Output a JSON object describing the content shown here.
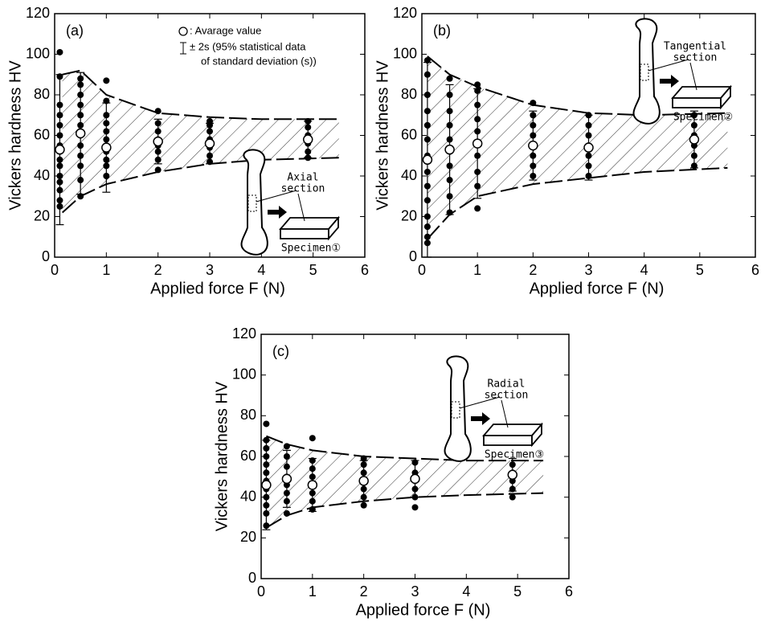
{
  "chart_data": [
    {
      "type": "scatter",
      "panel": "(a)",
      "xlabel": "Applied force  F  (N)",
      "ylabel": "Vickers hardness  HV",
      "xlim": [
        0,
        6
      ],
      "ylim": [
        0,
        120
      ],
      "xticks": [
        0,
        1,
        2,
        3,
        4,
        5,
        6
      ],
      "yticks": [
        0,
        20,
        40,
        60,
        80,
        100,
        120
      ],
      "legend": {
        "average": ": Avarage value",
        "error": [
          "± 2s (95% statistical data",
          "of standard deviation (s))"
        ]
      },
      "inset": {
        "section": [
          "Axial",
          "section"
        ],
        "specimen": "Specimen①"
      },
      "averages": {
        "x": [
          0.1,
          0.5,
          1,
          2,
          3,
          4.9
        ],
        "values": [
          53,
          61,
          54,
          57,
          56,
          58
        ],
        "errors": [
          37,
          30,
          22,
          11,
          10,
          9
        ]
      },
      "points": [
        {
          "x": 0.1,
          "y": [
            25,
            28,
            33,
            37,
            40,
            45,
            48,
            52,
            55,
            60,
            65,
            70,
            75,
            89,
            101
          ]
        },
        {
          "x": 0.5,
          "y": [
            30,
            38,
            45,
            50,
            55,
            60,
            65,
            70,
            75,
            80,
            85,
            88
          ]
        },
        {
          "x": 1,
          "y": [
            40,
            45,
            48,
            52,
            55,
            58,
            62,
            66,
            70,
            77,
            87
          ]
        },
        {
          "x": 2,
          "y": [
            43,
            48,
            52,
            55,
            58,
            62,
            66,
            72
          ]
        },
        {
          "x": 3,
          "y": [
            47,
            50,
            54,
            58,
            62,
            65,
            67
          ]
        },
        {
          "x": 4.9,
          "y": [
            49,
            52,
            56,
            60,
            64,
            67
          ]
        }
      ],
      "band": {
        "x": [
          0.15,
          0.5,
          1,
          2,
          3,
          4,
          5.5
        ],
        "upper": [
          90,
          92,
          80,
          71,
          69,
          68,
          68
        ],
        "lower": [
          22,
          30,
          36,
          42,
          46,
          48,
          49
        ]
      }
    },
    {
      "type": "scatter",
      "panel": "(b)",
      "xlabel": "Applied force  F  (N)",
      "ylabel": "Vickers hardness  HV",
      "xlim": [
        0,
        6
      ],
      "ylim": [
        0,
        120
      ],
      "xticks": [
        0,
        1,
        2,
        3,
        4,
        5,
        6
      ],
      "yticks": [
        0,
        20,
        40,
        60,
        80,
        100,
        120
      ],
      "inset": {
        "section": [
          "Tangential",
          "section"
        ],
        "specimen": "Specimen②"
      },
      "averages": {
        "x": [
          0.1,
          0.5,
          1,
          2,
          3,
          4.9
        ],
        "values": [
          48,
          53,
          56,
          55,
          54,
          58
        ],
        "errors": [
          48,
          32,
          27,
          17,
          16,
          14
        ]
      },
      "points": [
        {
          "x": 0.1,
          "y": [
            7,
            10,
            15,
            20,
            28,
            35,
            42,
            50,
            58,
            65,
            72,
            80,
            90,
            97
          ]
        },
        {
          "x": 0.5,
          "y": [
            22,
            30,
            38,
            45,
            52,
            58,
            65,
            72,
            80,
            88
          ]
        },
        {
          "x": 1,
          "y": [
            24,
            35,
            42,
            50,
            56,
            62,
            68,
            75,
            82,
            85
          ]
        },
        {
          "x": 2,
          "y": [
            40,
            45,
            50,
            55,
            60,
            65,
            70,
            76
          ]
        },
        {
          "x": 3,
          "y": [
            40,
            45,
            50,
            55,
            60,
            65,
            70
          ]
        },
        {
          "x": 4.9,
          "y": [
            45,
            50,
            55,
            60,
            65,
            70
          ]
        }
      ],
      "band": {
        "x": [
          0.1,
          0.5,
          1,
          2,
          3,
          4,
          5.5
        ],
        "upper": [
          99,
          90,
          84,
          75,
          71,
          70,
          71
        ],
        "lower": [
          9,
          21,
          30,
          36,
          39,
          42,
          44
        ]
      }
    },
    {
      "type": "scatter",
      "panel": "(c)",
      "xlabel": "Applied force  F  (N)",
      "ylabel": "Vickers hardness  HV",
      "xlim": [
        0,
        6
      ],
      "ylim": [
        0,
        120
      ],
      "xticks": [
        0,
        1,
        2,
        3,
        4,
        5,
        6
      ],
      "yticks": [
        0,
        20,
        40,
        60,
        80,
        100,
        120
      ],
      "inset": {
        "section": [
          "Radial",
          "section"
        ],
        "specimen": "Specimen③"
      },
      "averages": {
        "x": [
          0.1,
          0.5,
          1,
          2,
          3,
          4.9
        ],
        "values": [
          46,
          49,
          46,
          48,
          49,
          51
        ],
        "errors": [
          22,
          14,
          13,
          10,
          9,
          8
        ]
      },
      "points": [
        {
          "x": 0.1,
          "y": [
            26,
            32,
            36,
            40,
            44,
            48,
            52,
            56,
            60,
            64,
            68,
            76
          ]
        },
        {
          "x": 0.5,
          "y": [
            32,
            38,
            42,
            46,
            50,
            55,
            60,
            65
          ]
        },
        {
          "x": 1,
          "y": [
            34,
            38,
            42,
            46,
            50,
            54,
            58,
            69
          ]
        },
        {
          "x": 2,
          "y": [
            36,
            40,
            44,
            48,
            52,
            56,
            59
          ]
        },
        {
          "x": 3,
          "y": [
            35,
            40,
            44,
            48,
            52,
            57
          ]
        },
        {
          "x": 4.9,
          "y": [
            40,
            44,
            48,
            52,
            56
          ]
        }
      ],
      "band": {
        "x": [
          0.1,
          0.5,
          1,
          2,
          3,
          4,
          5.5
        ],
        "upper": [
          70,
          66,
          63,
          60,
          59,
          58,
          58
        ],
        "lower": [
          25,
          31,
          35,
          38,
          40,
          41,
          42
        ]
      }
    }
  ]
}
